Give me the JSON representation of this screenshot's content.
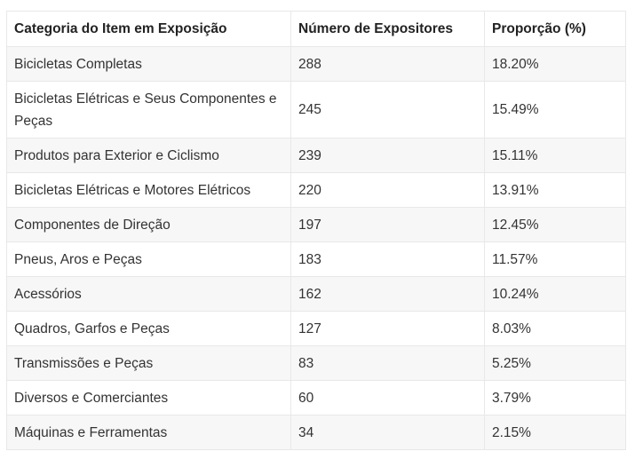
{
  "table": {
    "headers": [
      "Categoria do Item em Exposição",
      "Número de Expositores",
      "Proporção (%)"
    ],
    "rows": [
      [
        "Bicicletas Completas",
        "288",
        "18.20%"
      ],
      [
        "Bicicletas Elétricas e Seus Componentes e Peças",
        "245",
        "15.49%"
      ],
      [
        "Produtos para Exterior e Ciclismo",
        "239",
        "15.11%"
      ],
      [
        "Bicicletas Elétricas e Motores Elétricos",
        "220",
        "13.91%"
      ],
      [
        "Componentes de Direção",
        "197",
        "12.45%"
      ],
      [
        "Pneus, Aros e Peças",
        "183",
        "11.57%"
      ],
      [
        "Acessórios",
        "162",
        "10.24%"
      ],
      [
        "Quadros, Garfos e Peças",
        "127",
        "8.03%"
      ],
      [
        "Transmissões e Peças",
        "83",
        "5.25%"
      ],
      [
        "Diversos e Comerciantes",
        "60",
        "3.79%"
      ],
      [
        "Máquinas e Ferramentas",
        "34",
        "2.15%"
      ]
    ]
  }
}
